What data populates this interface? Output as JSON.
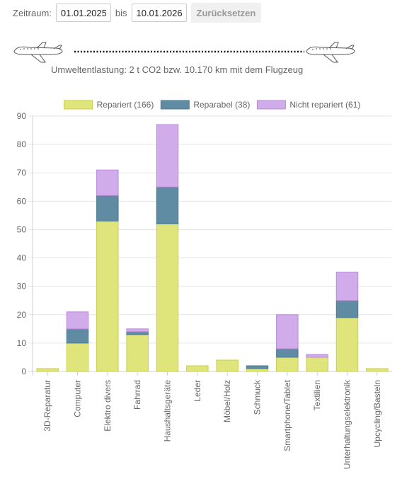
{
  "filter": {
    "label": "Zeitraum:",
    "from": "01.01.2025",
    "separator": "bis",
    "to": "10.01.2026",
    "reset_label": "Zurücksetzen"
  },
  "impact": {
    "text": "Umweltentlastung: 2 t CO2 bzw. 10.170 km mit dem Flugzeug",
    "icon": "airplane-icon"
  },
  "chart_data": {
    "type": "bar",
    "stacked": true,
    "categories": [
      "3D-Reparatur",
      "Computer",
      "Elektro divers",
      "Fahrrad",
      "Haushaltsgeräte",
      "Leder",
      "Möbel/Holz",
      "Schmuck",
      "Smartphone/Tablet",
      "Textilien",
      "Unterhaltungselektronik",
      "Upcycling/Basteln"
    ],
    "series": [
      {
        "name": "Repariert (166)",
        "color": "#dfe57a",
        "stroke": "#c8cf4a",
        "values": [
          1,
          10,
          53,
          13,
          52,
          2,
          4,
          1,
          5,
          5,
          19,
          1
        ]
      },
      {
        "name": "Reparabel (38)",
        "color": "#5f8ca3",
        "stroke": "#4f7a90",
        "values": [
          0,
          5,
          9,
          1,
          13,
          0,
          0,
          1,
          3,
          0,
          6,
          0
        ]
      },
      {
        "name": "Nicht repariert (61)",
        "color": "#d1acea",
        "stroke": "#b98ad6",
        "values": [
          0,
          6,
          9,
          1,
          22,
          0,
          0,
          0,
          12,
          1,
          10,
          0
        ]
      }
    ],
    "yticks": [
      "0",
      "10",
      "20",
      "30",
      "40",
      "50",
      "60",
      "70",
      "80",
      "90"
    ],
    "ylim": [
      0,
      90
    ],
    "grid": true,
    "legend": "top-center"
  }
}
